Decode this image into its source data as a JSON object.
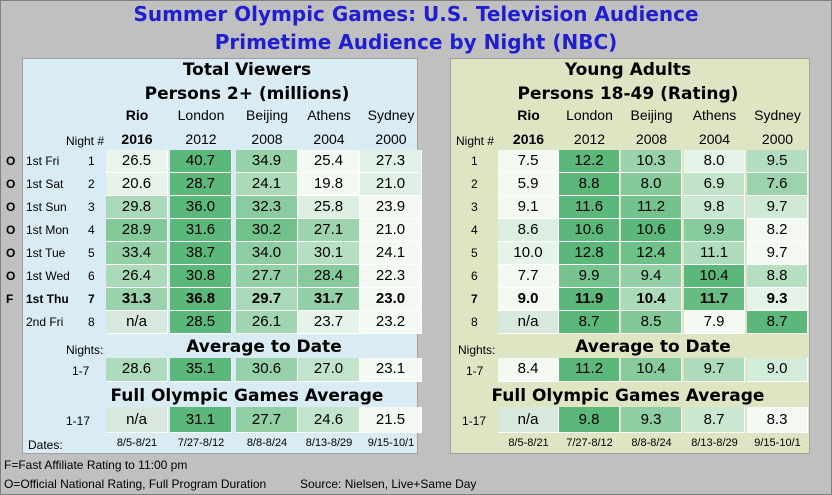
{
  "title1": "Summer Olympic Games: U.S. Television Audience",
  "title2": "Primetime Audience by Night (NBC)",
  "left": {
    "title1": "Total Viewers",
    "title2": "Persons 2+ (millions)",
    "rows": [
      [
        "26.5",
        "40.7",
        "34.9",
        "25.4",
        "27.3"
      ],
      [
        "20.6",
        "28.7",
        "24.1",
        "19.8",
        "21.0"
      ],
      [
        "29.8",
        "36.0",
        "32.3",
        "25.8",
        "23.9"
      ],
      [
        "28.9",
        "31.6",
        "30.2",
        "27.1",
        "21.0"
      ],
      [
        "33.4",
        "38.7",
        "34.0",
        "30.1",
        "24.1"
      ],
      [
        "26.4",
        "30.8",
        "27.7",
        "28.4",
        "22.3"
      ],
      [
        "31.3",
        "36.8",
        "29.7",
        "31.7",
        "23.0"
      ],
      [
        "n/a",
        "28.5",
        "26.1",
        "23.7",
        "23.2"
      ]
    ],
    "avg": [
      "28.6",
      "35.1",
      "30.6",
      "27.0",
      "23.1"
    ],
    "full": [
      "n/a",
      "31.1",
      "27.7",
      "24.6",
      "21.5"
    ]
  },
  "right": {
    "title1": "Young Adults",
    "title2": "Persons 18-49 (Rating)",
    "rows": [
      [
        "7.5",
        "12.2",
        "10.3",
        "8.0",
        "9.5"
      ],
      [
        "5.9",
        "8.8",
        "8.0",
        "6.9",
        "7.6"
      ],
      [
        "9.1",
        "11.6",
        "11.2",
        "9.8",
        "9.7"
      ],
      [
        "8.6",
        "10.6",
        "10.6",
        "9.9",
        "8.2"
      ],
      [
        "10.0",
        "12.8",
        "12.4",
        "11.1",
        "9.7"
      ],
      [
        "7.7",
        "9.9",
        "9.4",
        "10.4",
        "8.8"
      ],
      [
        "9.0",
        "11.9",
        "10.4",
        "11.7",
        "9.3"
      ],
      [
        "n/a",
        "8.7",
        "8.5",
        "7.9",
        "8.7"
      ]
    ],
    "avg": [
      "8.4",
      "11.2",
      "10.4",
      "9.7",
      "9.0"
    ],
    "full": [
      "n/a",
      "9.8",
      "9.3",
      "8.7",
      "8.3"
    ]
  },
  "cities": [
    "Rio",
    "London",
    "Beijing",
    "Athens",
    "Sydney"
  ],
  "years": [
    "2016",
    "2012",
    "2008",
    "2004",
    "2000"
  ],
  "night_hdr": "Night #",
  "flags": [
    "O",
    "O",
    "O",
    "O",
    "O",
    "O",
    "F",
    ""
  ],
  "nights": [
    "1st Fri",
    "1st Sat",
    "1st Sun",
    "1st Mon",
    "1st Tue",
    "1st Wed",
    "1st Thu",
    "2nd Fri"
  ],
  "night_nums": [
    "1",
    "2",
    "3",
    "4",
    "5",
    "6",
    "7",
    "8"
  ],
  "nights_label": "Nights:",
  "avg_title": "Average to Date",
  "avg_range": "1-7",
  "full_title": "Full Olympic Games Average",
  "full_range": "1-17",
  "dates_label": "Dates:",
  "dates": [
    "8/5-8/21",
    "7/27-8/12",
    "8/8-8/24",
    "8/13-8/29",
    "9/15-10/1"
  ],
  "foot1": "F=Fast Affiliate Rating to 11:00 pm",
  "foot2": "O=Official National Rating, Full Program Duration",
  "source": "Source: Nielsen, Live+Same Day"
}
